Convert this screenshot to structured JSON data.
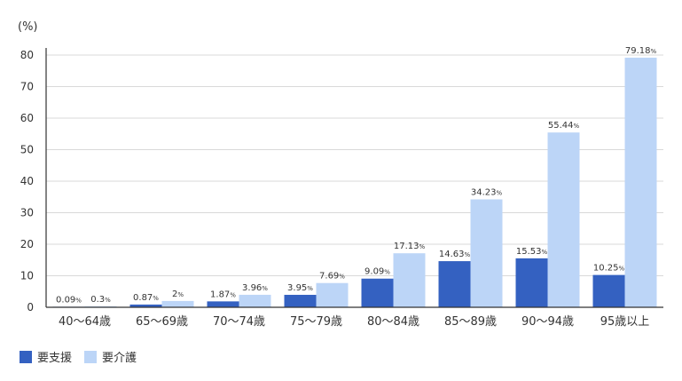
{
  "chart_data": {
    "type": "bar",
    "unit_label": "(%)",
    "value_suffix": "%",
    "categories": [
      "40〜64歳",
      "65〜69歳",
      "70〜74歳",
      "75〜79歳",
      "80〜84歳",
      "85〜89歳",
      "90〜94歳",
      "95歳以上"
    ],
    "series": [
      {
        "name": "要支援",
        "color": "#3461c1",
        "values": [
          0.09,
          0.87,
          1.87,
          3.95,
          9.09,
          14.63,
          15.53,
          10.25
        ]
      },
      {
        "name": "要介護",
        "color": "#bcd5f7",
        "values": [
          0.3,
          2,
          3.96,
          7.69,
          17.13,
          34.23,
          55.44,
          79.18
        ]
      }
    ],
    "ylim": [
      0,
      80
    ],
    "yticks": [
      0,
      10,
      20,
      30,
      40,
      50,
      60,
      70,
      80
    ],
    "grid": true,
    "legend_position": "bottom-left"
  }
}
